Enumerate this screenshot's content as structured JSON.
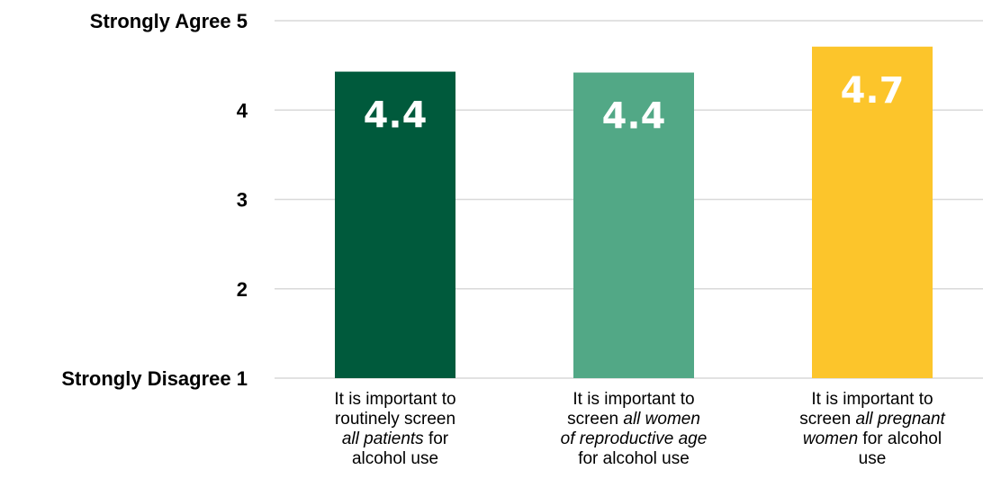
{
  "chart_data": {
    "type": "bar",
    "title": "",
    "xlabel": "",
    "ylabel": "",
    "ylim": [
      1,
      5
    ],
    "grid": true,
    "yticks": [
      {
        "value": 5,
        "label": "Strongly Agree 5"
      },
      {
        "value": 4,
        "label": "4"
      },
      {
        "value": 3,
        "label": "3"
      },
      {
        "value": 2,
        "label": "2"
      },
      {
        "value": 1,
        "label": "Strongly Disagree 1"
      }
    ],
    "categories": [
      {
        "label_lines": [
          [
            {
              "text": "It is important to",
              "italic": false
            }
          ],
          [
            {
              "text": "routinely screen",
              "italic": false
            }
          ],
          [
            {
              "text": "all patients",
              "italic": true
            },
            {
              "text": " for",
              "italic": false
            }
          ],
          [
            {
              "text": "alcohol use",
              "italic": false
            }
          ]
        ]
      },
      {
        "label_lines": [
          [
            {
              "text": "It is important to",
              "italic": false
            }
          ],
          [
            {
              "text": "screen ",
              "italic": false
            },
            {
              "text": "all women",
              "italic": true
            }
          ],
          [
            {
              "text": "of reproductive age",
              "italic": true
            }
          ],
          [
            {
              "text": "for alcohol use",
              "italic": false
            }
          ]
        ]
      },
      {
        "label_lines": [
          [
            {
              "text": "It is important to",
              "italic": false
            }
          ],
          [
            {
              "text": "screen ",
              "italic": false
            },
            {
              "text": "all pregnant",
              "italic": true
            }
          ],
          [
            {
              "text": "women",
              "italic": true
            },
            {
              "text": " for alcohol",
              "italic": false
            }
          ],
          [
            {
              "text": "use",
              "italic": false
            }
          ]
        ]
      }
    ],
    "values": [
      4.43,
      4.42,
      4.71
    ],
    "data_labels": [
      "4.4",
      "4.4",
      "4.7"
    ],
    "colors": [
      "#005a3c",
      "#52a886",
      "#fcc52b"
    ],
    "gridline_color": "#d9d9d9"
  }
}
